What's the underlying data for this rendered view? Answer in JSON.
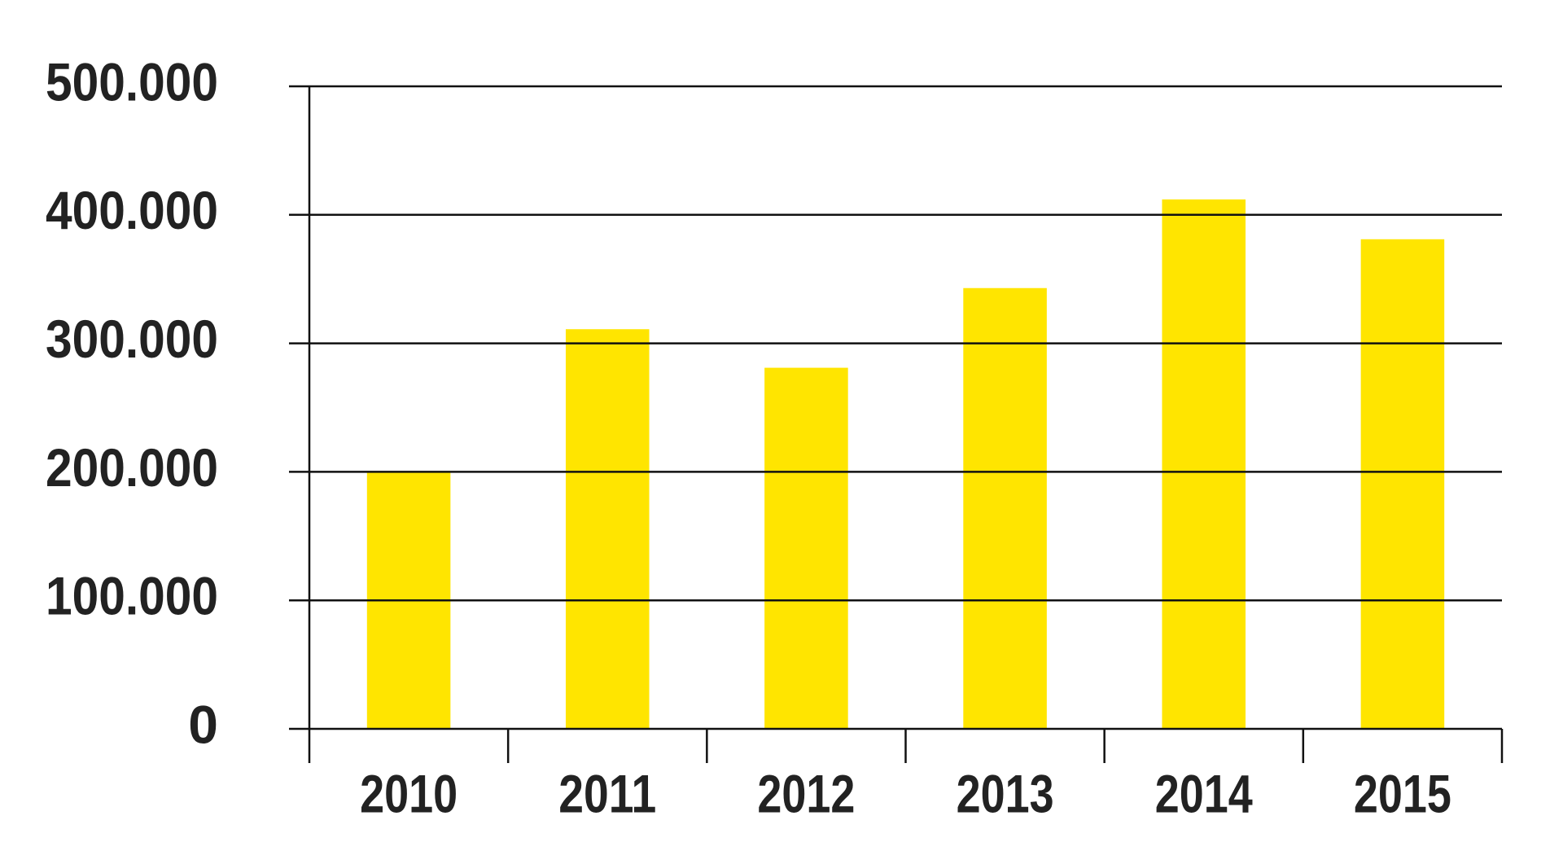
{
  "chart_data": {
    "type": "bar",
    "categories": [
      "2010",
      "2011",
      "2012",
      "2013",
      "2014",
      "2015"
    ],
    "values": [
      200000,
      311000,
      281000,
      343000,
      412000,
      381000
    ],
    "color": "#ffe500",
    "ylim": [
      0,
      500000
    ],
    "yticks": [
      0,
      {
        "value": 100000,
        "label": "100.000"
      },
      {
        "value": 200000,
        "label": "200.000"
      },
      {
        "value": 300000,
        "label": "300.000"
      },
      {
        "value": 400000,
        "label": "400.000"
      },
      {
        "value": 500000,
        "label": "500.000"
      }
    ],
    "grid": true
  }
}
